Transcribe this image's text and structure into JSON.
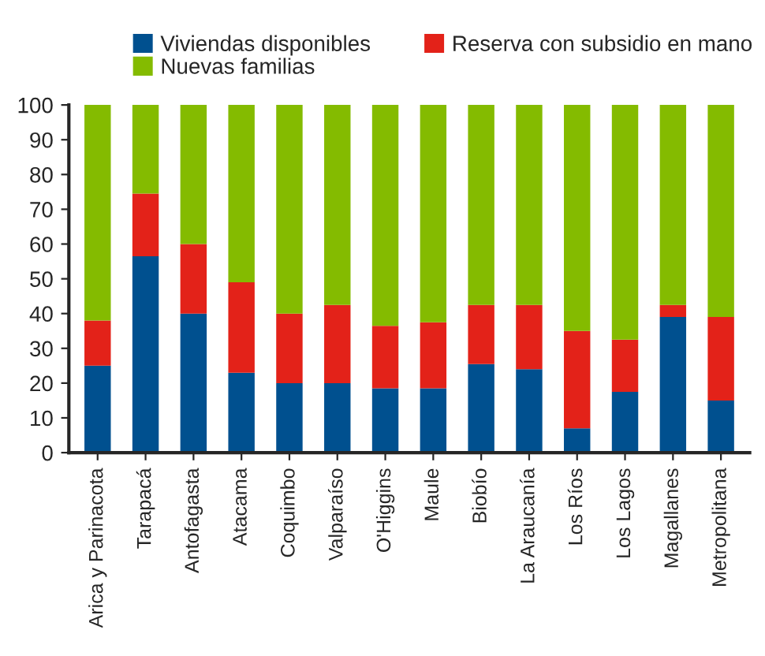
{
  "chart_data": {
    "type": "bar",
    "stacked": true,
    "categories": [
      "Arica y Parinacota",
      "Tarapacá",
      "Antofagasta",
      "Atacama",
      "Coquimbo",
      "Valparaíso",
      "O'Higgins",
      "Maule",
      "Biobío",
      "La Araucanía",
      "Los Ríos",
      "Los Lagos",
      "Magallanes",
      "Metropolitana"
    ],
    "series": [
      {
        "name": "Viviendas disponibles",
        "color": "#00508f",
        "values": [
          25,
          56.5,
          40,
          23,
          20,
          20,
          18.5,
          18.5,
          25.5,
          24,
          7,
          17.5,
          39,
          15
        ]
      },
      {
        "name": "Reserva con subsidio en mano",
        "color": "#e32219",
        "values": [
          13,
          18,
          20,
          26,
          20,
          22.5,
          18,
          19,
          17,
          18.5,
          28,
          15,
          3.5,
          24
        ]
      },
      {
        "name": "Nuevas familias",
        "color": "#84bb00",
        "values": [
          62,
          25.5,
          40,
          51,
          60,
          57.5,
          63.5,
          62.5,
          57.5,
          57.5,
          65,
          67.5,
          57.5,
          61
        ]
      }
    ],
    "ylim": [
      0,
      100
    ],
    "yticks": [
      0,
      10,
      20,
      30,
      40,
      50,
      60,
      70,
      80,
      90,
      100
    ],
    "grid": false,
    "legend": "top"
  }
}
